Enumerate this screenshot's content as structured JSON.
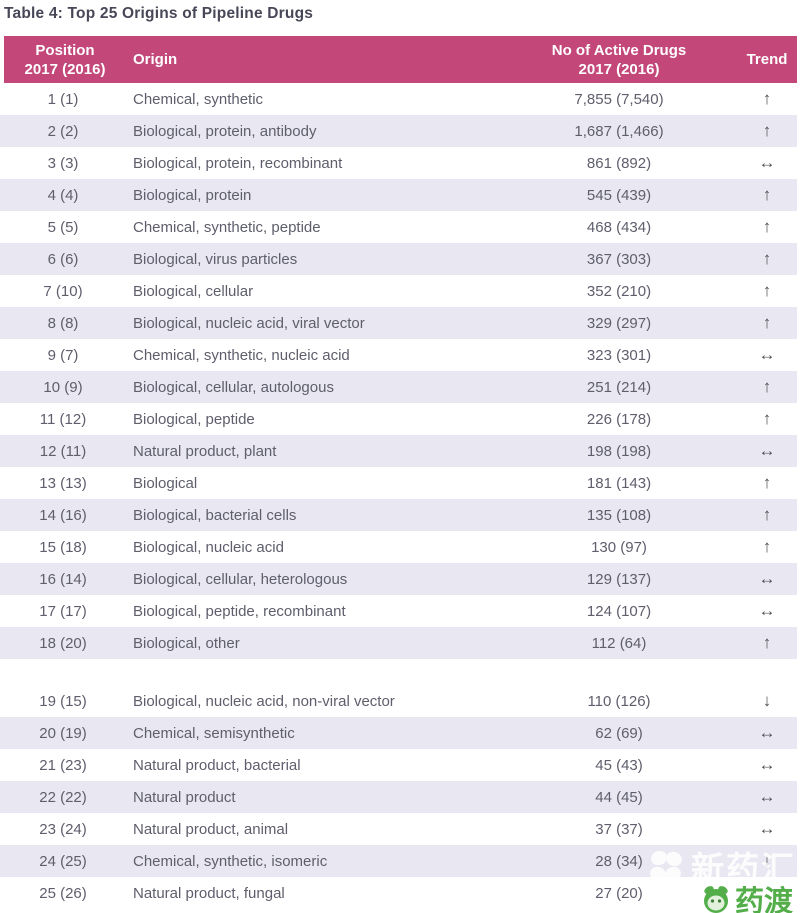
{
  "title": "Table 4: Top 25 Origins of Pipeline Drugs",
  "table": {
    "header": {
      "position_line1": "Position",
      "position_line2": "2017 (2016)",
      "origin": "Origin",
      "drugs_line1": "No of Active Drugs",
      "drugs_line2": "2017 (2016)",
      "trend": "Trend"
    },
    "rows": [
      {
        "position": "1 (1)",
        "origin": "Chemical, synthetic",
        "drugs": "7,855 (7,540)",
        "trend": "↑",
        "trend_name": "up"
      },
      {
        "position": "2 (2)",
        "origin": "Biological, protein, antibody",
        "drugs": "1,687 (1,466)",
        "trend": "↑",
        "trend_name": "up"
      },
      {
        "position": "3 (3)",
        "origin": "Biological, protein, recombinant",
        "drugs": "861 (892)",
        "trend": "↔",
        "trend_name": "steady"
      },
      {
        "position": "4 (4)",
        "origin": "Biological, protein",
        "drugs": "545 (439)",
        "trend": "↑",
        "trend_name": "up"
      },
      {
        "position": "5 (5)",
        "origin": "Chemical, synthetic, peptide",
        "drugs": "468 (434)",
        "trend": "↑",
        "trend_name": "up"
      },
      {
        "position": "6 (6)",
        "origin": "Biological, virus particles",
        "drugs": "367 (303)",
        "trend": "↑",
        "trend_name": "up"
      },
      {
        "position": "7 (10)",
        "origin": "Biological, cellular",
        "drugs": "352 (210)",
        "trend": "↑",
        "trend_name": "up"
      },
      {
        "position": "8 (8)",
        "origin": "Biological, nucleic acid, viral vector",
        "drugs": "329 (297)",
        "trend": "↑",
        "trend_name": "up"
      },
      {
        "position": "9 (7)",
        "origin": "Chemical, synthetic, nucleic acid",
        "drugs": "323 (301)",
        "trend": "↔",
        "trend_name": "steady"
      },
      {
        "position": "10 (9)",
        "origin": "Biological, cellular, autologous",
        "drugs": "251 (214)",
        "trend": "↑",
        "trend_name": "up"
      },
      {
        "position": "11 (12)",
        "origin": "Biological, peptide",
        "drugs": "226 (178)",
        "trend": "↑",
        "trend_name": "up"
      },
      {
        "position": "12 (11)",
        "origin": "Natural product, plant",
        "drugs": "198 (198)",
        "trend": "↔",
        "trend_name": "steady"
      },
      {
        "position": "13 (13)",
        "origin": "Biological",
        "drugs": "181 (143)",
        "trend": "↑",
        "trend_name": "up"
      },
      {
        "position": "14 (16)",
        "origin": "Biological, bacterial cells",
        "drugs": "135 (108)",
        "trend": "↑",
        "trend_name": "up"
      },
      {
        "position": "15 (18)",
        "origin": "Biological, nucleic acid",
        "drugs": "130 (97)",
        "trend": "↑",
        "trend_name": "up"
      },
      {
        "position": "16 (14)",
        "origin": "Biological, cellular, heterologous",
        "drugs": "129 (137)",
        "trend": "↔",
        "trend_name": "steady"
      },
      {
        "position": "17 (17)",
        "origin": "Biological, peptide, recombinant",
        "drugs": "124 (107)",
        "trend": "↔",
        "trend_name": "steady"
      },
      {
        "position": "18 (20)",
        "origin": "Biological, other",
        "drugs": "112 (64)",
        "trend": "↑",
        "trend_name": "up"
      },
      {
        "position": "19 (15)",
        "origin": "Biological, nucleic acid, non-viral vector",
        "drugs": "110 (126)",
        "trend": "↓",
        "trend_name": "down",
        "gap_before": true
      },
      {
        "position": "20 (19)",
        "origin": "Chemical, semisynthetic",
        "drugs": "62 (69)",
        "trend": "↔",
        "trend_name": "steady"
      },
      {
        "position": "21 (23)",
        "origin": "Natural product, bacterial",
        "drugs": "45 (43)",
        "trend": "↔",
        "trend_name": "steady"
      },
      {
        "position": "22 (22)",
        "origin": "Natural product",
        "drugs": "44 (45)",
        "trend": "↔",
        "trend_name": "steady"
      },
      {
        "position": "23 (24)",
        "origin": "Natural product, animal",
        "drugs": "37 (37)",
        "trend": "↔",
        "trend_name": "steady"
      },
      {
        "position": "24 (25)",
        "origin": "Chemical, synthetic, isomeric",
        "drugs": "28 (34)",
        "trend": "↓",
        "trend_name": "down"
      },
      {
        "position": "25 (26)",
        "origin": "Natural product, fungal",
        "drugs": "27 (20)",
        "trend": "",
        "trend_name": "obscured-by-watermark"
      }
    ]
  },
  "watermark": {
    "white_logo_text": "新药汇",
    "green_logo_text": "药渡",
    "green_color": "#53AE4A"
  },
  "colors": {
    "header_bg": "#C34779",
    "row_alt_bg": "#E9E8F2",
    "title_text": "#474757",
    "cell_text": "#5E5E6C",
    "arrow": "#515159"
  }
}
